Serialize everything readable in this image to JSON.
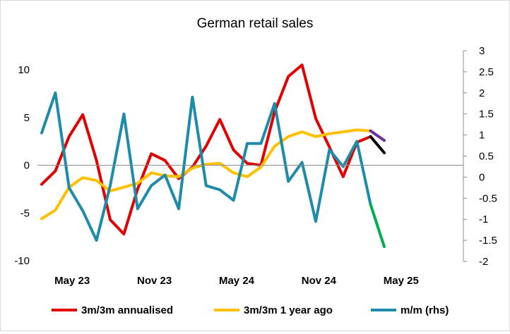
{
  "chart_data": {
    "type": "line",
    "title": "German retail sales",
    "xlabel": "",
    "ylabel": "",
    "ylim": [
      -10,
      12
    ],
    "y2lim": [
      -2,
      3
    ],
    "yticks": [
      "10",
      "5",
      "0",
      "-5",
      "-10"
    ],
    "y2ticks": [
      "3",
      "2.5",
      "2",
      "1.5",
      "1",
      "0.5",
      "0",
      "-0.5",
      "-1",
      "-1.5",
      "-2"
    ],
    "x_labels": [
      "May 23",
      "Nov 23",
      "May 24",
      "Nov 24",
      "May 25"
    ],
    "x": [
      "Feb 23",
      "Mar 23",
      "Apr 23",
      "May 23",
      "Jun 23",
      "Jul 23",
      "Aug 23",
      "Sep 23",
      "Oct 23",
      "Nov 23",
      "Dec 23",
      "Jan 24",
      "Feb 24",
      "Mar 24",
      "Apr 24",
      "May 24",
      "Jun 24",
      "Jul 24",
      "Aug 24",
      "Sep 24",
      "Oct 24",
      "Nov 24",
      "Dec 24",
      "Jan 25",
      "Feb 25",
      "Mar 25",
      "Apr 25",
      "May 25"
    ],
    "legend_position": "bottom",
    "grid": false,
    "series": [
      {
        "name": "3m/3m annualised",
        "axis": "left",
        "color": "#e00000",
        "values": [
          -2.0,
          -0.6,
          3.0,
          5.3,
          0.5,
          -5.7,
          -7.2,
          -2.5,
          1.2,
          0.5,
          -1.4,
          -0.2,
          2.0,
          4.8,
          1.6,
          0.2,
          0.0,
          5.6,
          9.3,
          10.5,
          4.9,
          1.9,
          -1.2,
          2.4,
          3.0,
          null,
          null,
          null
        ],
        "forecast_segment": {
          "color": "#000000",
          "values_from_index": 24,
          "values": [
            3.0,
            1.3
          ]
        }
      },
      {
        "name": "3m/3m 1 year ago",
        "axis": "left",
        "color": "#ffc000",
        "values": [
          -5.6,
          -4.7,
          -2.3,
          -1.3,
          -1.6,
          -2.7,
          -2.3,
          -1.9,
          -0.8,
          -1.1,
          -1.2,
          -0.3,
          0.1,
          0.2,
          -0.8,
          -1.2,
          -0.2,
          2.0,
          3.0,
          3.5,
          3.0,
          3.3,
          3.5,
          3.7,
          3.6,
          null,
          null,
          null
        ],
        "forecast_segment": {
          "color": "#7030a0",
          "values_from_index": 24,
          "values": [
            3.6,
            2.6
          ]
        }
      },
      {
        "name": "m/m (rhs)",
        "axis": "right",
        "color": "#1f8bab",
        "values": [
          1.05,
          2.0,
          -0.25,
          -0.8,
          -1.5,
          -0.2,
          1.5,
          -0.75,
          -0.2,
          0.05,
          -0.75,
          1.9,
          -0.2,
          -0.3,
          -0.55,
          0.8,
          0.8,
          1.75,
          -0.1,
          0.35,
          -1.05,
          0.65,
          0.25,
          0.85,
          -0.65,
          null,
          null,
          null
        ],
        "forecast_segment": {
          "color": "#00b050",
          "values_from_index": 24,
          "values": [
            -0.65,
            -1.65
          ]
        }
      }
    ]
  }
}
